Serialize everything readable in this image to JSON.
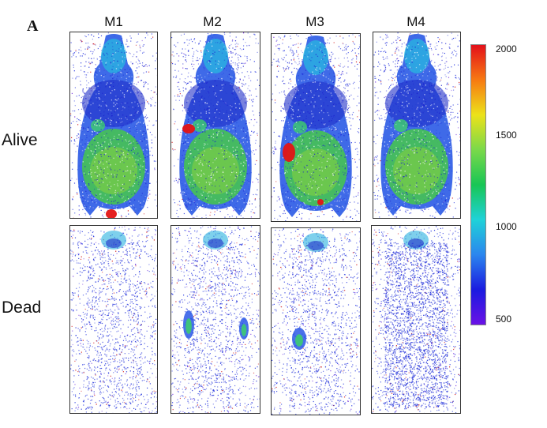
{
  "panel_label": "A",
  "columns": [
    "M1",
    "M2",
    "M3",
    "M4"
  ],
  "rows": [
    "Alive",
    "Dead"
  ],
  "colorbar": {
    "max_label": "2000",
    "ticks": [
      "2000",
      "1500",
      "1000",
      "500"
    ],
    "colors": [
      "#e3101a",
      "#f77a12",
      "#ece21a",
      "#7ad94a",
      "#18c655",
      "#1fd2d8",
      "#2b86ee",
      "#1a1be0",
      "#6a12e6"
    ]
  },
  "colors": {
    "speckle_blue": "#2c3ce0",
    "speckle_red": "#d11a1a",
    "body_green": "#46c84a",
    "hotspot_red": "#e41414"
  }
}
